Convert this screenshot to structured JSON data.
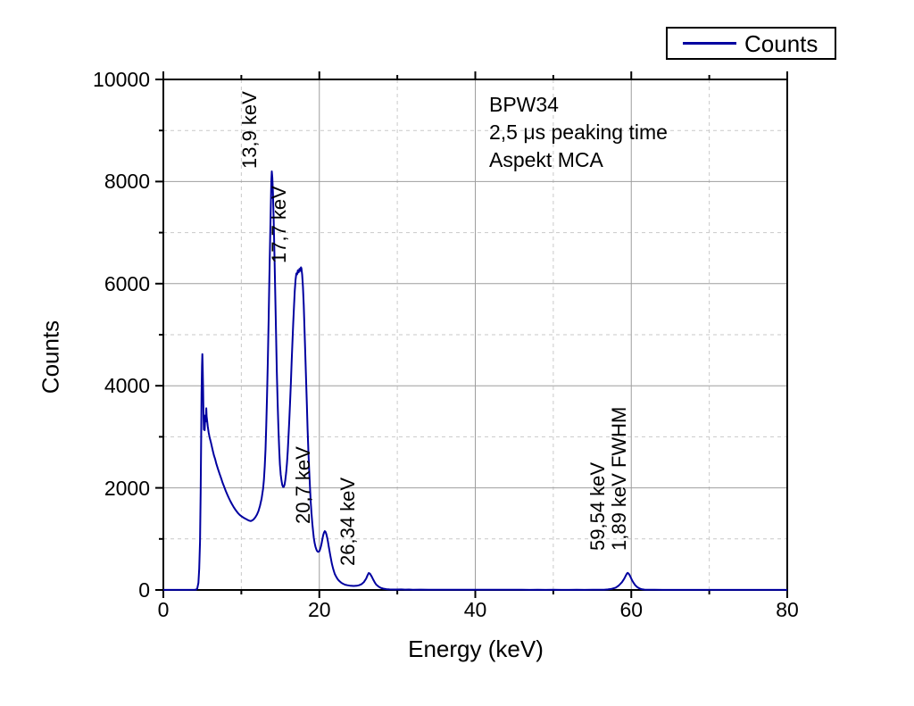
{
  "chart_data": {
    "type": "line",
    "title": "",
    "xlabel": "Energy (keV)",
    "ylabel": "Counts",
    "xlim": [
      0,
      80
    ],
    "ylim": [
      0,
      10000
    ],
    "x_major_ticks": [
      0,
      20,
      40,
      60,
      80
    ],
    "x_minor_ticks": [
      10,
      30,
      50,
      70
    ],
    "y_major_ticks": [
      0,
      2000,
      4000,
      6000,
      8000,
      10000
    ],
    "y_minor_ticks": [
      1000,
      3000,
      5000,
      7000,
      9000
    ],
    "grid": {
      "major_style": "solid",
      "minor_style": "dashed",
      "major_color": "#9e9e9e",
      "minor_color": "#c9c9c9"
    },
    "legend": {
      "position": "top-right",
      "entries": [
        {
          "label": "Counts",
          "color": "#0000a0"
        }
      ]
    },
    "info_box": {
      "lines": [
        "BPW34",
        "2,5 μs peaking time",
        "Aspekt MCA"
      ]
    },
    "annotations": [
      {
        "label": "13,9 keV",
        "x_kev": 13.6,
        "y_counts": 8250
      },
      {
        "label": "17,7 keV",
        "x_kev": 17.4,
        "y_counts": 6400
      },
      {
        "label": "20,7 keV",
        "x_kev": 20.45,
        "y_counts": 1300
      },
      {
        "label": "26,34 keV",
        "x_kev": 26.2,
        "y_counts": 480
      },
      {
        "label": "59,54 keV",
        "x_kev": 58.3,
        "y_counts": 770
      },
      {
        "label": "1,89 keV FWHM",
        "x_kev": 61.0,
        "y_counts": 770
      }
    ],
    "series": [
      {
        "name": "Counts",
        "color": "#0000a0",
        "points": [
          [
            0,
            2
          ],
          [
            1,
            2
          ],
          [
            2,
            2
          ],
          [
            3,
            2
          ],
          [
            4,
            3
          ],
          [
            4.2,
            6
          ],
          [
            4.35,
            30
          ],
          [
            4.5,
            140
          ],
          [
            4.6,
            420
          ],
          [
            4.7,
            950
          ],
          [
            4.78,
            1900
          ],
          [
            4.85,
            3000
          ],
          [
            4.9,
            3850
          ],
          [
            4.95,
            4380
          ],
          [
            5,
            4620
          ],
          [
            5.05,
            4350
          ],
          [
            5.1,
            3880
          ],
          [
            5.15,
            3400
          ],
          [
            5.2,
            3140
          ],
          [
            5.25,
            3280
          ],
          [
            5.3,
            3130
          ],
          [
            5.38,
            3420
          ],
          [
            5.45,
            3300
          ],
          [
            5.5,
            3560
          ],
          [
            5.55,
            3400
          ],
          [
            5.62,
            3310
          ],
          [
            5.7,
            3200
          ],
          [
            5.8,
            3090
          ],
          [
            5.9,
            3010
          ],
          [
            6,
            2950
          ],
          [
            6.1,
            2890
          ],
          [
            6.2,
            2820
          ],
          [
            6.35,
            2720
          ],
          [
            6.5,
            2630
          ],
          [
            6.65,
            2560
          ],
          [
            6.8,
            2470
          ],
          [
            7,
            2370
          ],
          [
            7.2,
            2280
          ],
          [
            7.4,
            2190
          ],
          [
            7.6,
            2100
          ],
          [
            7.8,
            2020
          ],
          [
            8,
            1940
          ],
          [
            8.2,
            1870
          ],
          [
            8.4,
            1800
          ],
          [
            8.6,
            1740
          ],
          [
            8.8,
            1680
          ],
          [
            9,
            1630
          ],
          [
            9.2,
            1580
          ],
          [
            9.4,
            1540
          ],
          [
            9.6,
            1500
          ],
          [
            9.8,
            1470
          ],
          [
            10,
            1445
          ],
          [
            10.2,
            1425
          ],
          [
            10.4,
            1405
          ],
          [
            10.6,
            1390
          ],
          [
            10.8,
            1372
          ],
          [
            11,
            1358
          ],
          [
            11.2,
            1350
          ],
          [
            11.4,
            1362
          ],
          [
            11.6,
            1388
          ],
          [
            11.8,
            1425
          ],
          [
            12,
            1478
          ],
          [
            12.2,
            1548
          ],
          [
            12.4,
            1650
          ],
          [
            12.6,
            1790
          ],
          [
            12.8,
            1990
          ],
          [
            12.9,
            2160
          ],
          [
            13,
            2420
          ],
          [
            13.1,
            2760
          ],
          [
            13.2,
            3220
          ],
          [
            13.3,
            3820
          ],
          [
            13.4,
            4520
          ],
          [
            13.5,
            5320
          ],
          [
            13.6,
            6120
          ],
          [
            13.7,
            6920
          ],
          [
            13.78,
            7520
          ],
          [
            13.85,
            8020
          ],
          [
            13.9,
            8200
          ],
          [
            13.97,
            8080
          ],
          [
            14.05,
            7780
          ],
          [
            14.15,
            7260
          ],
          [
            14.25,
            6560
          ],
          [
            14.35,
            5780
          ],
          [
            14.45,
            5000
          ],
          [
            14.55,
            4300
          ],
          [
            14.65,
            3700
          ],
          [
            14.75,
            3180
          ],
          [
            14.85,
            2760
          ],
          [
            14.95,
            2460
          ],
          [
            15.05,
            2260
          ],
          [
            15.15,
            2140
          ],
          [
            15.25,
            2060
          ],
          [
            15.35,
            2020
          ],
          [
            15.45,
            2020
          ],
          [
            15.55,
            2070
          ],
          [
            15.65,
            2160
          ],
          [
            15.75,
            2300
          ],
          [
            15.85,
            2480
          ],
          [
            15.95,
            2720
          ],
          [
            16.05,
            3000
          ],
          [
            16.15,
            3320
          ],
          [
            16.25,
            3680
          ],
          [
            16.35,
            4060
          ],
          [
            16.45,
            4450
          ],
          [
            16.55,
            4840
          ],
          [
            16.65,
            5220
          ],
          [
            16.75,
            5560
          ],
          [
            16.85,
            5850
          ],
          [
            16.95,
            6070
          ],
          [
            17.05,
            6200
          ],
          [
            17.15,
            6180
          ],
          [
            17.25,
            6260
          ],
          [
            17.35,
            6220
          ],
          [
            17.45,
            6290
          ],
          [
            17.55,
            6250
          ],
          [
            17.65,
            6320
          ],
          [
            17.7,
            6300
          ],
          [
            17.8,
            6180
          ],
          [
            17.9,
            5940
          ],
          [
            18,
            5580
          ],
          [
            18.1,
            5140
          ],
          [
            18.2,
            4640
          ],
          [
            18.3,
            4130
          ],
          [
            18.4,
            3630
          ],
          [
            18.5,
            3150
          ],
          [
            18.6,
            2720
          ],
          [
            18.7,
            2340
          ],
          [
            18.8,
            2010
          ],
          [
            18.9,
            1730
          ],
          [
            19,
            1500
          ],
          [
            19.1,
            1305
          ],
          [
            19.2,
            1145
          ],
          [
            19.3,
            1015
          ],
          [
            19.4,
            920
          ],
          [
            19.5,
            850
          ],
          [
            19.6,
            800
          ],
          [
            19.7,
            768
          ],
          [
            19.8,
            750
          ],
          [
            19.9,
            748
          ],
          [
            20,
            760
          ],
          [
            20.1,
            795
          ],
          [
            20.2,
            850
          ],
          [
            20.3,
            920
          ],
          [
            20.4,
            1000
          ],
          [
            20.5,
            1072
          ],
          [
            20.6,
            1125
          ],
          [
            20.7,
            1152
          ],
          [
            20.8,
            1138
          ],
          [
            20.9,
            1095
          ],
          [
            21,
            1030
          ],
          [
            21.1,
            950
          ],
          [
            21.2,
            862
          ],
          [
            21.3,
            772
          ],
          [
            21.4,
            682
          ],
          [
            21.5,
            600
          ],
          [
            21.6,
            525
          ],
          [
            21.7,
            460
          ],
          [
            21.8,
            400
          ],
          [
            21.9,
            350
          ],
          [
            22,
            308
          ],
          [
            22.2,
            248
          ],
          [
            22.4,
            203
          ],
          [
            22.6,
            170
          ],
          [
            22.8,
            144
          ],
          [
            23,
            124
          ],
          [
            23.3,
            104
          ],
          [
            23.6,
            92
          ],
          [
            24,
            82
          ],
          [
            24.4,
            78
          ],
          [
            24.8,
            82
          ],
          [
            25.1,
            92
          ],
          [
            25.4,
            112
          ],
          [
            25.7,
            152
          ],
          [
            26,
            222
          ],
          [
            26.2,
            292
          ],
          [
            26.34,
            332
          ],
          [
            26.5,
            318
          ],
          [
            26.7,
            268
          ],
          [
            26.9,
            208
          ],
          [
            27.1,
            150
          ],
          [
            27.3,
            105
          ],
          [
            27.6,
            65
          ],
          [
            27.9,
            40
          ],
          [
            28.2,
            26
          ],
          [
            28.6,
            16
          ],
          [
            29,
            11
          ],
          [
            29.5,
            9
          ],
          [
            30,
            8
          ],
          [
            30.5,
            10
          ],
          [
            31,
            7
          ],
          [
            31.5,
            9
          ],
          [
            32,
            6
          ],
          [
            33,
            7
          ],
          [
            34,
            5
          ],
          [
            35,
            6
          ],
          [
            36,
            4
          ],
          [
            37,
            5
          ],
          [
            38,
            4
          ],
          [
            39,
            3
          ],
          [
            40,
            4
          ],
          [
            41,
            3
          ],
          [
            42,
            3
          ],
          [
            43,
            4
          ],
          [
            44,
            3
          ],
          [
            45,
            3
          ],
          [
            46,
            3
          ],
          [
            47,
            2
          ],
          [
            48,
            3
          ],
          [
            49,
            2
          ],
          [
            50,
            3
          ],
          [
            51,
            2
          ],
          [
            52,
            2
          ],
          [
            53,
            3
          ],
          [
            54,
            2
          ],
          [
            55,
            3
          ],
          [
            56,
            4
          ],
          [
            56.5,
            6
          ],
          [
            57,
            11
          ],
          [
            57.5,
            22
          ],
          [
            58,
            46
          ],
          [
            58.4,
            88
          ],
          [
            58.8,
            152
          ],
          [
            59.1,
            222
          ],
          [
            59.3,
            282
          ],
          [
            59.45,
            322
          ],
          [
            59.54,
            336
          ],
          [
            59.65,
            322
          ],
          [
            59.8,
            288
          ],
          [
            59.95,
            240
          ],
          [
            60.1,
            190
          ],
          [
            60.3,
            138
          ],
          [
            60.5,
            95
          ],
          [
            60.8,
            52
          ],
          [
            61.1,
            27
          ],
          [
            61.4,
            13
          ],
          [
            61.7,
            7
          ],
          [
            62,
            4
          ],
          [
            63,
            3
          ],
          [
            64,
            2
          ],
          [
            66,
            2
          ],
          [
            68,
            2
          ],
          [
            70,
            2
          ],
          [
            72,
            2
          ],
          [
            74,
            2
          ],
          [
            76,
            2
          ],
          [
            78,
            2
          ],
          [
            80,
            2
          ]
        ]
      }
    ]
  }
}
